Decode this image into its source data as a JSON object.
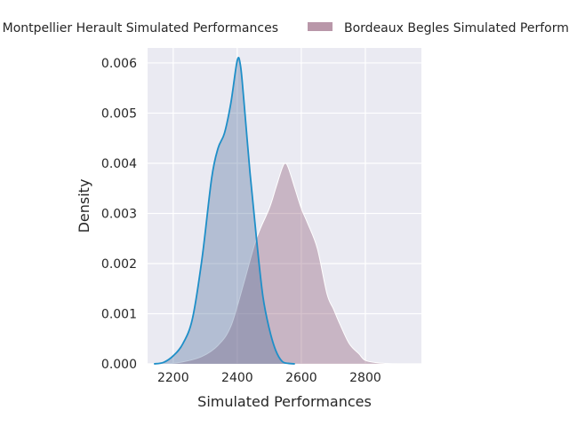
{
  "chart_data": {
    "type": "area",
    "title": "",
    "xlabel": "Simulated Performances",
    "ylabel": "Density",
    "xlim": [
      2120,
      2975
    ],
    "ylim": [
      0,
      0.0063
    ],
    "x_ticks": [
      2200,
      2400,
      2600,
      2800
    ],
    "x_tick_labels": [
      "2200",
      "2400",
      "2600",
      "2800"
    ],
    "y_ticks": [
      0,
      0.001,
      0.002,
      0.003,
      0.004,
      0.005,
      0.006
    ],
    "y_tick_labels": [
      "0.000",
      "0.001",
      "0.002",
      "0.003",
      "0.004",
      "0.005",
      "0.006"
    ],
    "grid": true,
    "legend_position": "top",
    "series": [
      {
        "name": "Montpellier Herault Simulated Performances",
        "legend_label": "Montpellier Herault Simulated Performances",
        "fill_color": "#4c6e9a",
        "line_color": "#1f8fc8",
        "x": [
          2140,
          2170,
          2200,
          2230,
          2260,
          2290,
          2320,
          2340,
          2360,
          2380,
          2400,
          2410,
          2420,
          2440,
          2460,
          2480,
          2500,
          2520,
          2540,
          2560,
          2580
        ],
        "y": [
          0.0,
          3e-05,
          0.00016,
          0.0004,
          0.0009,
          0.0021,
          0.0037,
          0.0043,
          0.0046,
          0.0052,
          0.00605,
          0.00595,
          0.0053,
          0.0038,
          0.0025,
          0.00135,
          0.0007,
          0.00027,
          5e-05,
          1e-05,
          0.0
        ]
      },
      {
        "name": "Bordeaux Begles Simulated Performances",
        "legend_label": "Bordeaux Begles Simulated Performances",
        "fill_color": "#8a5270",
        "line_color": "#ffffff",
        "x": [
          2180,
          2230,
          2290,
          2340,
          2380,
          2420,
          2460,
          2500,
          2520,
          2540,
          2550,
          2560,
          2580,
          2600,
          2620,
          2650,
          2680,
          2700,
          2720,
          2750,
          2780,
          2800,
          2840,
          2880,
          2920
        ],
        "y": [
          0.0,
          4e-05,
          0.00015,
          0.00037,
          0.00075,
          0.0016,
          0.0025,
          0.0031,
          0.0035,
          0.0039,
          0.004,
          0.0039,
          0.0035,
          0.0031,
          0.0028,
          0.0023,
          0.0014,
          0.0011,
          0.0008,
          0.0004,
          0.0002,
          7e-05,
          2e-05,
          5e-06,
          0.0
        ]
      }
    ]
  }
}
